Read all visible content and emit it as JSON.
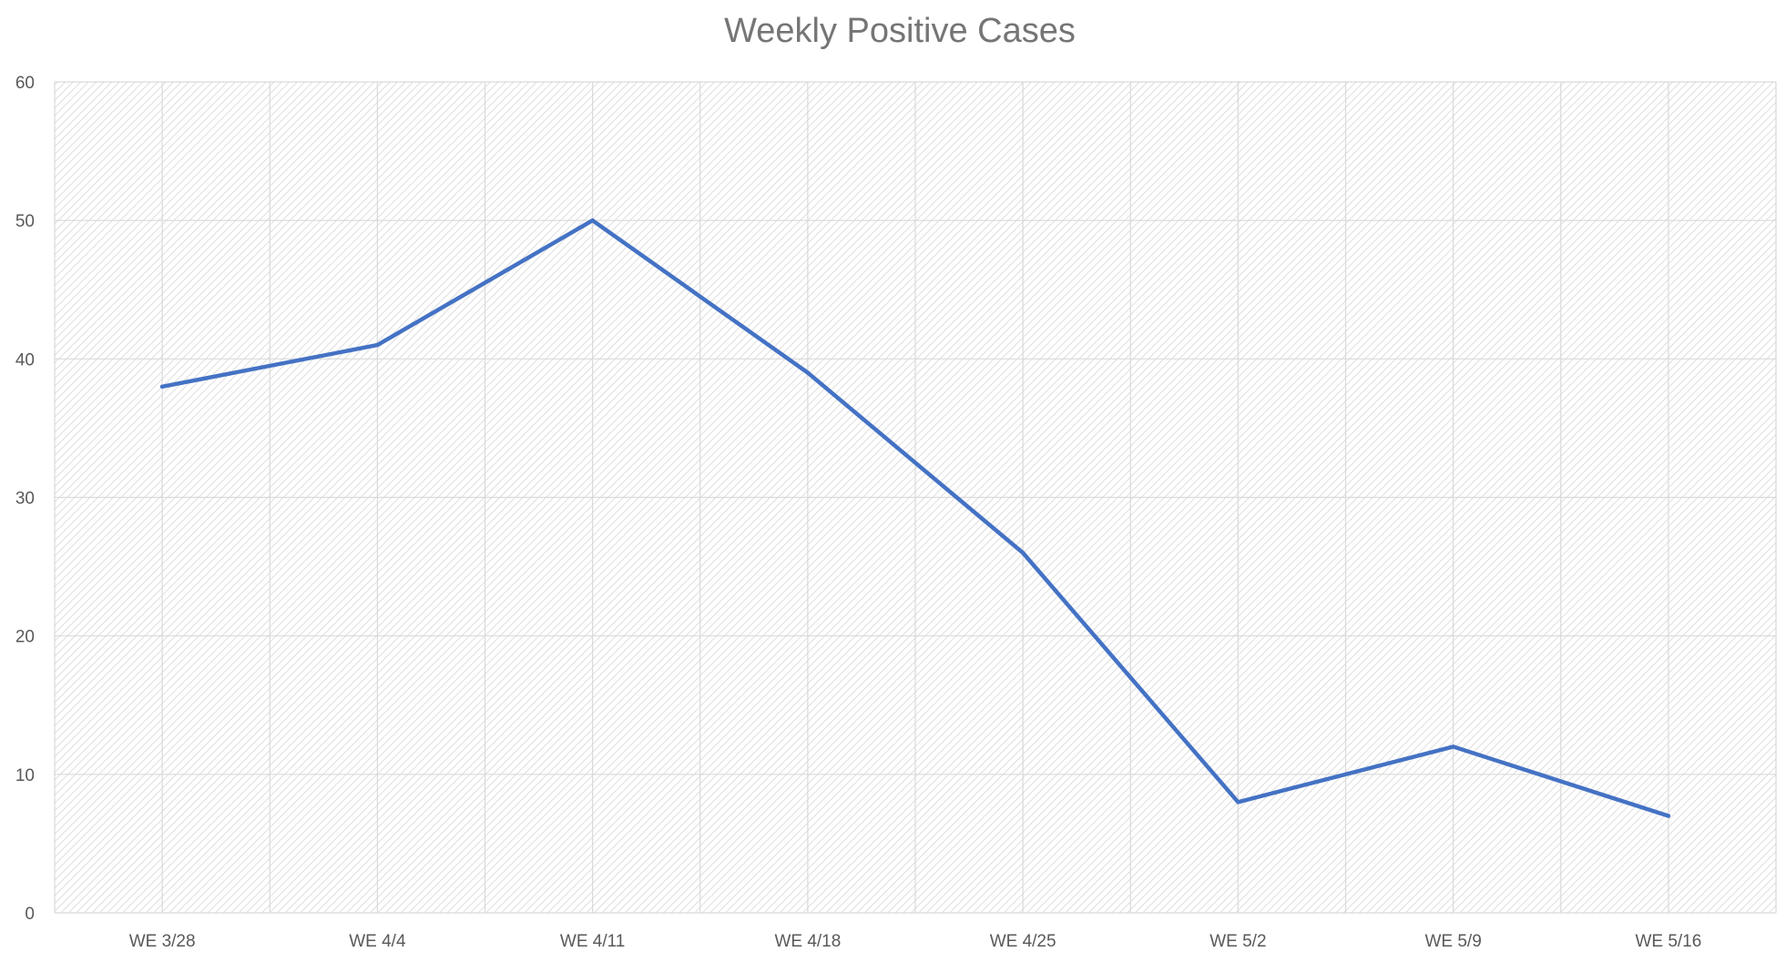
{
  "chart_data": {
    "type": "line",
    "title": "Weekly Positive Cases",
    "xlabel": "",
    "ylabel": "",
    "categories": [
      "WE 3/28",
      "WE 4/4",
      "WE 4/11",
      "WE 4/18",
      "WE 4/25",
      "WE 5/2",
      "WE 5/9",
      "WE 5/16"
    ],
    "series": [
      {
        "values": [
          38,
          41,
          50,
          39,
          26,
          8,
          12,
          7
        ],
        "color": "#4472C4"
      }
    ],
    "ylim": [
      0,
      60
    ],
    "yticks": [
      0,
      10,
      20,
      30,
      40,
      50,
      60
    ],
    "grid": true,
    "legend": "none",
    "plot_background": "hatched light gray",
    "colors": {
      "gridline": "#d9d9d9",
      "hatch": "#d6d6d6",
      "title": "#757575",
      "tick_label": "#595959"
    }
  }
}
